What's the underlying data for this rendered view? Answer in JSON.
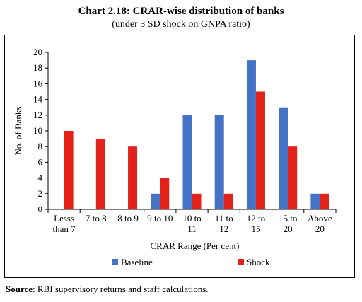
{
  "chart_data": {
    "type": "bar",
    "title": "Chart 2.18: CRAR-wise distribution of banks",
    "subtitle": "(under 3 SD shock on GNPA ratio)",
    "xlabel": "CRAR Range (Per cent)",
    "ylabel": "No. of Banks",
    "ylim": [
      0,
      20
    ],
    "yticks": [
      "0",
      "2",
      "4",
      "6",
      "8",
      "10",
      "12",
      "14",
      "16",
      "18",
      "20"
    ],
    "grid": false,
    "legend_position": "bottom",
    "categories": [
      [
        "Lesss",
        "than 7"
      ],
      [
        "7 to 8"
      ],
      [
        "8 to 9"
      ],
      [
        "9 to 10"
      ],
      [
        "10 to",
        "11"
      ],
      [
        "11 to",
        "12"
      ],
      [
        "12 to",
        "15"
      ],
      [
        "15 to",
        "20"
      ],
      [
        "Above",
        "20"
      ]
    ],
    "series": [
      {
        "name": "Baseline",
        "color": "#4472C4",
        "values": [
          0,
          0,
          0,
          2,
          12,
          12,
          19,
          13,
          2
        ]
      },
      {
        "name": "Shock",
        "color": "#E32219",
        "values": [
          10,
          9,
          8,
          4,
          2,
          2,
          15,
          8,
          2
        ]
      }
    ]
  },
  "source": {
    "label": "Source",
    "text": ": RBI supervisory returns and staff calculations."
  }
}
